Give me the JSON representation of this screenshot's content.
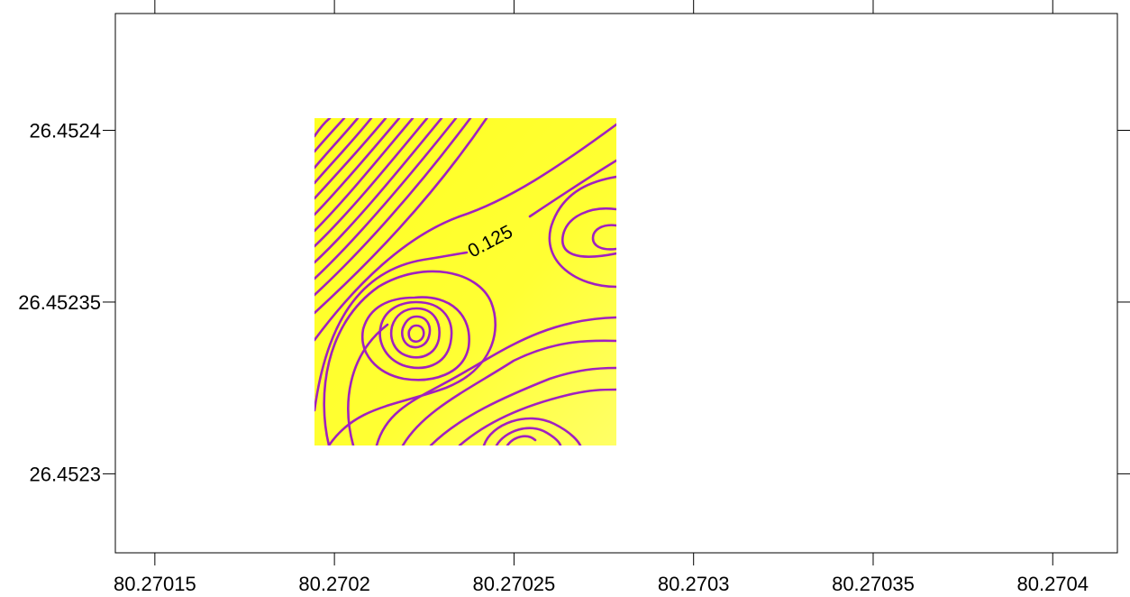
{
  "chart_data": {
    "type": "contour",
    "title": "",
    "xlabel": "",
    "ylabel": "",
    "xlim": [
      80.270139,
      80.270418
    ],
    "ylim": [
      26.452277,
      26.452434
    ],
    "x_ticks": [
      {
        "value": 80.27015,
        "label": "80.27015"
      },
      {
        "value": 80.2702,
        "label": "80.2702"
      },
      {
        "value": 80.27025,
        "label": "80.27025"
      },
      {
        "value": 80.2703,
        "label": "80.2703"
      },
      {
        "value": 80.27035,
        "label": "80.27035"
      },
      {
        "value": 80.2704,
        "label": "80.2704"
      }
    ],
    "y_ticks": [
      {
        "value": 26.4524,
        "label": "26.4524"
      },
      {
        "value": 26.45235,
        "label": "26.45235"
      },
      {
        "value": 26.4523,
        "label": "26.4523"
      }
    ],
    "data_extent": {
      "x": [
        80.270194,
        80.270278
      ],
      "y": [
        26.452305,
        26.452389
      ]
    },
    "fill_color": "#ffff33",
    "contour_color": "#a020c0",
    "contour_labels": [
      {
        "text": "0.125",
        "x": 80.27024,
        "y": 26.452359
      }
    ],
    "grid": false
  }
}
